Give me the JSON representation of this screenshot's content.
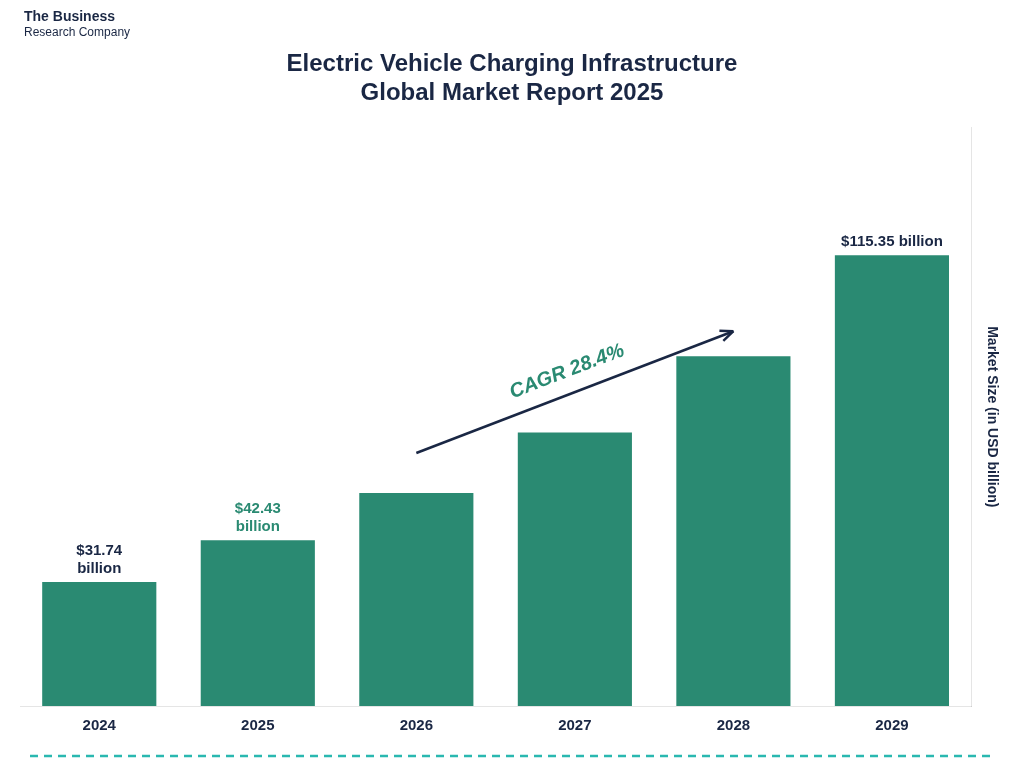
{
  "chart_data": {
    "type": "bar",
    "title": "Electric Vehicle Charging Infrastructure\nGlobal Market Report 2025",
    "title_color": "#1a2744",
    "categories": [
      "2024",
      "2025",
      "2026",
      "2027",
      "2028",
      "2029"
    ],
    "values": [
      31.74,
      42.43,
      54.5,
      70.0,
      89.5,
      115.35
    ],
    "color": "#2a8a72",
    "ylabel": "Market Size (in USD billion)",
    "ylabel_color": "#1a2744",
    "ylim": [
      0,
      148
    ],
    "yticks": [],
    "grid": false,
    "tick_labels": "x",
    "tick_color": "#1a2744",
    "annotations": [
      {
        "text": "$31.74\nbillion",
        "category": "2024",
        "color": "#1a2744"
      },
      {
        "text": "$42.43\nbillion",
        "category": "2025",
        "color": "#2a8a72"
      },
      {
        "text": "$115.35 billion",
        "category": "2029",
        "color": "#1a2744"
      },
      {
        "text": "CAGR 28.4%",
        "arrow_from": "2026",
        "arrow_to": "2028",
        "color": "#2a8a72",
        "arrow_color": "#1a2744"
      }
    ],
    "logo": {
      "lines": [
        "The Business",
        "Research Company"
      ],
      "color": "#1a2744"
    },
    "dashed_line_color": "#2ab8b0"
  }
}
